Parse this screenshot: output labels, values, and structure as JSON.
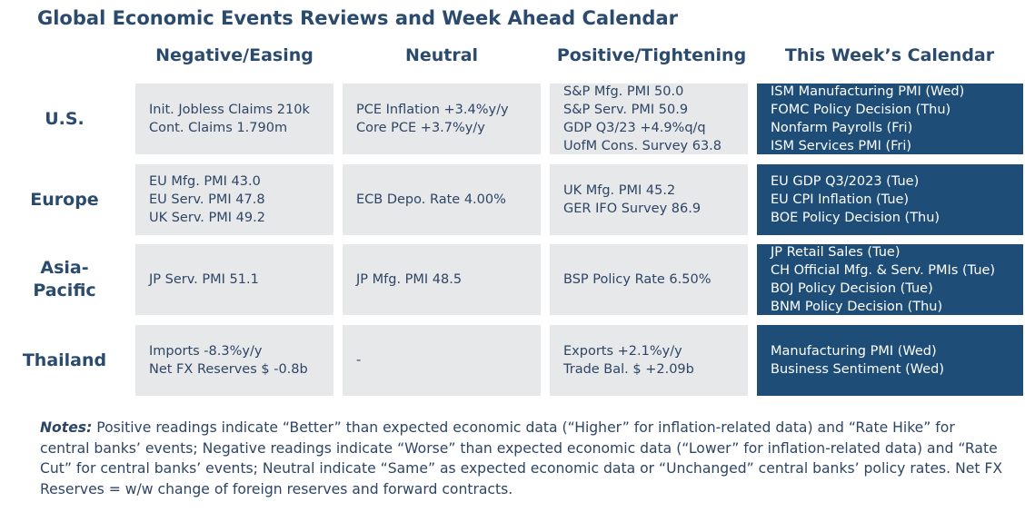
{
  "title": "Global Economic Events Reviews and Week Ahead Calendar",
  "columns": [
    "Negative/Easing",
    "Neutral",
    "Positive/Tightening",
    "This Week’s Calendar"
  ],
  "rows": [
    {
      "label": "U.S.",
      "negative": [
        "Init. Jobless Claims 210k",
        "Cont. Claims 1.790m"
      ],
      "neutral": [
        "PCE Inflation +3.4%y/y",
        "Core PCE +3.7%y/y"
      ],
      "positive": [
        "S&P Mfg. PMI 50.0",
        "S&P Serv. PMI 50.9",
        "GDP Q3/23 +4.9%q/q",
        "UofM Cons. Survey 63.8"
      ],
      "calendar": [
        "ISM Manufacturing PMI (Wed)",
        "FOMC Policy Decision (Thu)",
        "Nonfarm Payrolls (Fri)",
        "ISM Services PMI (Fri)"
      ]
    },
    {
      "label": "Europe",
      "negative": [
        "EU Mfg. PMI 43.0",
        "EU Serv. PMI 47.8",
        "UK Serv. PMI 49.2"
      ],
      "neutral": [
        "ECB Depo. Rate 4.00%"
      ],
      "positive": [
        "UK Mfg. PMI 45.2",
        "GER IFO Survey 86.9"
      ],
      "calendar": [
        "EU GDP Q3/2023 (Tue)",
        "EU CPI Inflation (Tue)",
        "BOE Policy Decision (Thu)"
      ]
    },
    {
      "label_lines": [
        "Asia-",
        "Pacific"
      ],
      "negative": [
        "JP Serv. PMI 51.1"
      ],
      "neutral": [
        "JP Mfg. PMI 48.5"
      ],
      "positive": [
        "BSP Policy Rate 6.50%"
      ],
      "calendar": [
        "JP Retail Sales (Tue)",
        "CH Official Mfg. & Serv. PMIs (Tue)",
        "BOJ Policy Decision (Tue)",
        "BNM Policy Decision (Thu)"
      ]
    },
    {
      "label": "Thailand",
      "negative": [
        "Imports -8.3%y/y",
        "Net FX Reserves $ -0.8b"
      ],
      "neutral": [
        "-"
      ],
      "positive": [
        "Exports +2.1%y/y",
        "Trade Bal. $ +2.09b"
      ],
      "calendar": [
        "Manufacturing PMI (Wed)",
        "Business Sentiment (Wed)"
      ]
    }
  ],
  "notes": {
    "label": "Notes:",
    "text": " Positive readings indicate “Better” than expected economic data (“Higher” for inflation-related data) and “Rate Hike” for central banks’ events; Negative readings indicate “Worse” than expected economic data (“Lower” for inflation-related data) and “Rate Cut” for central banks’ events; Neutral indicate “Same” as expected economic data or “Unchanged” central banks’ policy rates. Net FX Reserves = w/w change of foreign reserves and forward contracts."
  },
  "colors": {
    "title": "#2a4a6e",
    "cell_bg": "#e7e8ea",
    "calendar_bg": "#1e4d77",
    "calendar_text": "#ffffff"
  }
}
